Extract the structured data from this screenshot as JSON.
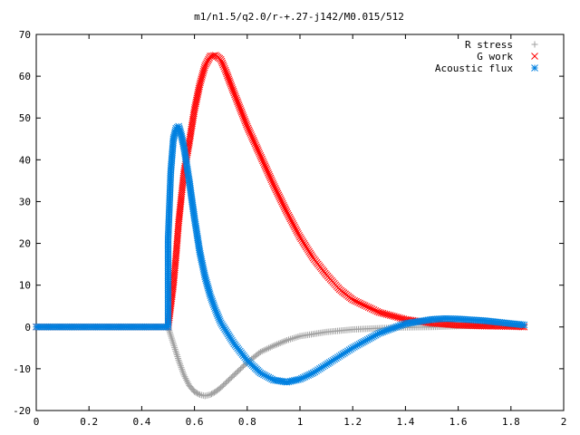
{
  "chart_data": {
    "type": "scatter",
    "title": "m1/n1.5/q2.0/r-+.27-j142/M0.015/512",
    "xlabel": "",
    "ylabel": "",
    "xlim": [
      0,
      2
    ],
    "ylim": [
      -20,
      70
    ],
    "x_ticks": [
      "0",
      "0.2",
      "0.4",
      "0.6",
      "0.8",
      "1",
      "1.2",
      "1.4",
      "1.6",
      "1.8",
      "2"
    ],
    "y_ticks": [
      "-20",
      "-10",
      "0",
      "10",
      "20",
      "30",
      "40",
      "50",
      "60",
      "70"
    ],
    "grid": false,
    "legend_position": "top-right",
    "series": [
      {
        "name": "R stress",
        "marker": "plus",
        "color": "#a0a0a0",
        "points": [
          [
            0.0,
            0.0
          ],
          [
            0.1,
            0.0
          ],
          [
            0.2,
            0.0
          ],
          [
            0.3,
            0.0
          ],
          [
            0.4,
            0.0
          ],
          [
            0.5,
            0.0
          ],
          [
            0.52,
            -4.0
          ],
          [
            0.54,
            -8.0
          ],
          [
            0.56,
            -11.5
          ],
          [
            0.58,
            -14.0
          ],
          [
            0.6,
            -15.5
          ],
          [
            0.62,
            -16.2
          ],
          [
            0.64,
            -16.5
          ],
          [
            0.66,
            -16.2
          ],
          [
            0.68,
            -15.5
          ],
          [
            0.7,
            -14.5
          ],
          [
            0.75,
            -11.5
          ],
          [
            0.8,
            -8.5
          ],
          [
            0.85,
            -6.0
          ],
          [
            0.9,
            -4.5
          ],
          [
            0.95,
            -3.2
          ],
          [
            1.0,
            -2.2
          ],
          [
            1.1,
            -1.2
          ],
          [
            1.2,
            -0.6
          ],
          [
            1.3,
            -0.3
          ],
          [
            1.4,
            -0.1
          ],
          [
            1.5,
            0.0
          ],
          [
            1.6,
            0.2
          ],
          [
            1.7,
            0.3
          ],
          [
            1.8,
            0.3
          ],
          [
            1.85,
            0.3
          ]
        ]
      },
      {
        "name": "G work",
        "marker": "cross",
        "color": "#ff0000",
        "points": [
          [
            0.0,
            0.0
          ],
          [
            0.1,
            0.0
          ],
          [
            0.2,
            0.0
          ],
          [
            0.3,
            0.0
          ],
          [
            0.4,
            0.0
          ],
          [
            0.5,
            0.0
          ],
          [
            0.51,
            5.0
          ],
          [
            0.52,
            10.0
          ],
          [
            0.53,
            17.0
          ],
          [
            0.54,
            25.0
          ],
          [
            0.55,
            31.0
          ],
          [
            0.56,
            37.0
          ],
          [
            0.58,
            44.0
          ],
          [
            0.6,
            52.0
          ],
          [
            0.62,
            58.0
          ],
          [
            0.64,
            62.5
          ],
          [
            0.66,
            64.8
          ],
          [
            0.68,
            65.0
          ],
          [
            0.7,
            64.0
          ],
          [
            0.72,
            61.0
          ],
          [
            0.75,
            56.0
          ],
          [
            0.8,
            48.0
          ],
          [
            0.85,
            41.0
          ],
          [
            0.9,
            34.0
          ],
          [
            0.95,
            27.5
          ],
          [
            1.0,
            21.5
          ],
          [
            1.05,
            16.5
          ],
          [
            1.1,
            12.5
          ],
          [
            1.15,
            9.0
          ],
          [
            1.2,
            6.5
          ],
          [
            1.3,
            3.5
          ],
          [
            1.4,
            1.8
          ],
          [
            1.5,
            0.9
          ],
          [
            1.6,
            0.4
          ],
          [
            1.7,
            0.2
          ],
          [
            1.8,
            0.1
          ],
          [
            1.85,
            0.0
          ]
        ]
      },
      {
        "name": "Acoustic flux",
        "marker": "star",
        "color": "#0080e0",
        "points": [
          [
            0.0,
            0.0
          ],
          [
            0.1,
            0.0
          ],
          [
            0.2,
            0.0
          ],
          [
            0.3,
            0.0
          ],
          [
            0.4,
            0.0
          ],
          [
            0.5,
            0.0
          ],
          [
            0.5,
            20.8
          ],
          [
            0.51,
            37.0
          ],
          [
            0.52,
            45.0
          ],
          [
            0.53,
            47.5
          ],
          [
            0.54,
            48.0
          ],
          [
            0.55,
            46.0
          ],
          [
            0.56,
            43.0
          ],
          [
            0.58,
            35.0
          ],
          [
            0.6,
            26.0
          ],
          [
            0.62,
            18.0
          ],
          [
            0.64,
            12.0
          ],
          [
            0.66,
            7.5
          ],
          [
            0.68,
            4.0
          ],
          [
            0.7,
            1.0
          ],
          [
            0.75,
            -4.0
          ],
          [
            0.8,
            -8.0
          ],
          [
            0.85,
            -11.0
          ],
          [
            0.9,
            -12.7
          ],
          [
            0.95,
            -13.2
          ],
          [
            1.0,
            -12.5
          ],
          [
            1.05,
            -11.0
          ],
          [
            1.1,
            -9.0
          ],
          [
            1.2,
            -5.0
          ],
          [
            1.3,
            -1.5
          ],
          [
            1.4,
            0.8
          ],
          [
            1.5,
            1.8
          ],
          [
            1.55,
            2.0
          ],
          [
            1.6,
            1.9
          ],
          [
            1.7,
            1.5
          ],
          [
            1.8,
            0.8
          ],
          [
            1.85,
            0.5
          ]
        ]
      }
    ]
  }
}
